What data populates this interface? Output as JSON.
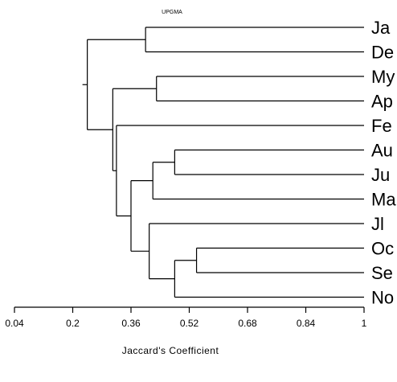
{
  "chart_data": {
    "type": "dendrogram",
    "title": "UPGMA",
    "xlabel": "Jaccard's Coefficient",
    "xlim": [
      0.04,
      1
    ],
    "xticks": [
      "0.04",
      "0.2",
      "0.36",
      "0.52",
      "0.68",
      "0.84",
      "1"
    ],
    "leaves": [
      "Ja",
      "De",
      "My",
      "Ap",
      "Fe",
      "Au",
      "Ju",
      "Ma",
      "Jl",
      "Oc",
      "Se",
      "No"
    ],
    "merges": [
      {
        "id": "c1",
        "children": [
          "Ja",
          "De"
        ],
        "similarity": 0.4
      },
      {
        "id": "c2",
        "children": [
          "My",
          "Ap"
        ],
        "similarity": 0.43
      },
      {
        "id": "c3",
        "children": [
          "Au",
          "Ju"
        ],
        "similarity": 0.48
      },
      {
        "id": "c4",
        "children": [
          "c3",
          "Ma"
        ],
        "similarity": 0.42
      },
      {
        "id": "c5",
        "children": [
          "Oc",
          "Se"
        ],
        "similarity": 0.54
      },
      {
        "id": "c6",
        "children": [
          "c5",
          "No"
        ],
        "similarity": 0.48
      },
      {
        "id": "c7",
        "children": [
          "Jl",
          "c6"
        ],
        "similarity": 0.41
      },
      {
        "id": "c8",
        "children": [
          "c4",
          "c7"
        ],
        "similarity": 0.36
      },
      {
        "id": "c9",
        "children": [
          "Fe",
          "c8"
        ],
        "similarity": 0.32
      },
      {
        "id": "c10",
        "children": [
          "c2",
          "c9"
        ],
        "similarity": 0.31
      },
      {
        "id": "c11",
        "children": [
          "c1",
          "c10"
        ],
        "similarity": 0.24
      }
    ]
  }
}
